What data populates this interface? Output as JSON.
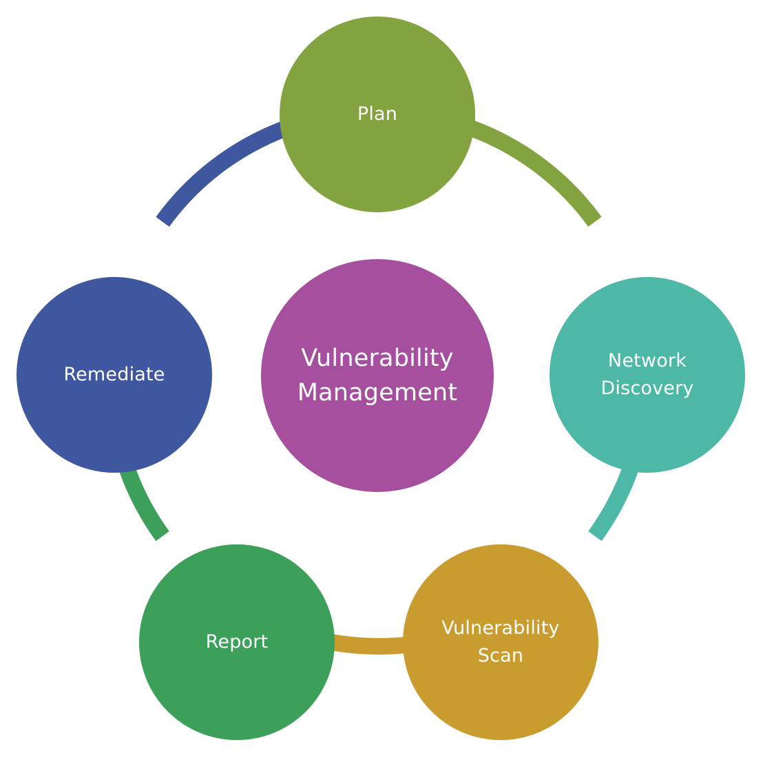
{
  "center": {
    "label": "Vulnerability\nManagement",
    "color": "#a54f9e"
  },
  "cycle": [
    {
      "id": "plan",
      "label": "Plan",
      "color": "#83a240"
    },
    {
      "id": "network-discovery",
      "label": "Network\nDiscovery",
      "color": "#4db8a5"
    },
    {
      "id": "vulnerability-scan",
      "label": "Vulnerability\nScan",
      "color": "#c99c2f"
    },
    {
      "id": "report",
      "label": "Report",
      "color": "#3c9f5a"
    },
    {
      "id": "remediate",
      "label": "Remediate",
      "color": "#3e579e"
    }
  ]
}
